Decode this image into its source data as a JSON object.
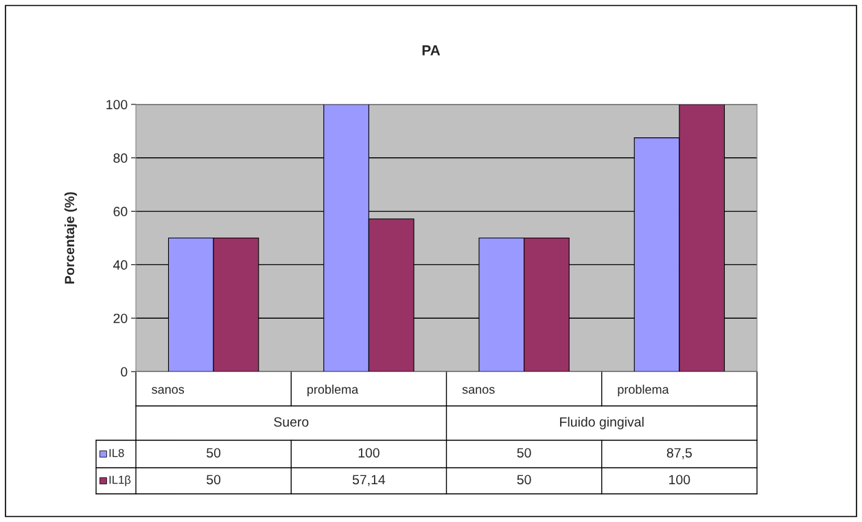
{
  "chart_data": {
    "type": "bar",
    "title": "PA",
    "ylabel": "Porcentaje (%)",
    "categories": [
      "sanos",
      "problema",
      "sanos",
      "problema"
    ],
    "series": [
      {
        "name": "IL8",
        "color": "#9999ff",
        "values": [
          50,
          100,
          50,
          87.5
        ],
        "value_labels": [
          "50",
          "100",
          "50",
          "87,5"
        ]
      },
      {
        "name": "IL1β",
        "color": "#993366",
        "values": [
          50,
          57.14,
          50,
          100
        ],
        "value_labels": [
          "50",
          "57,14",
          "50",
          "100"
        ]
      }
    ],
    "annotations": [
      "Suero",
      "Fluido gingival"
    ],
    "legend": "bottom left",
    "ylim": [
      0,
      100
    ],
    "yticks": [
      0,
      20,
      40,
      60,
      80,
      100
    ],
    "grid": "y"
  }
}
